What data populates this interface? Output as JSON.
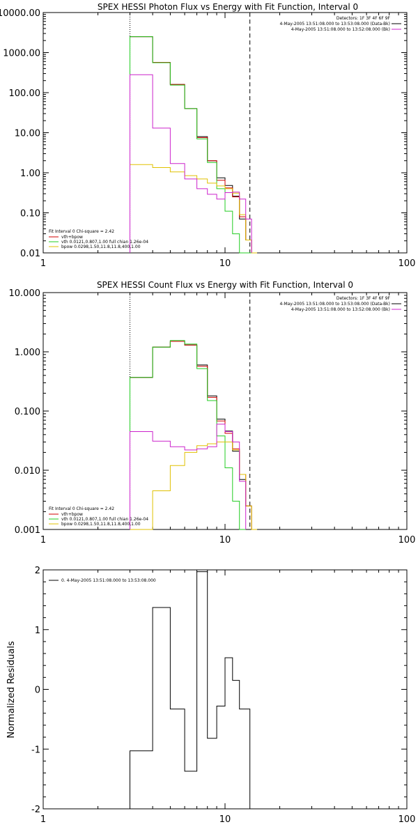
{
  "colors": {
    "background": "#ffffff",
    "axes": "#000000",
    "data": "#000000",
    "fit_total": "#d00000",
    "vth": "#22cc22",
    "bpow": "#e0c000",
    "background_series": "#cc22cc"
  },
  "chart_data": [
    {
      "type": "line",
      "title": "SPEX HESSI Photon Flux vs Energy with Fit Function, Interval 0",
      "xlabel": "",
      "ylabel": "",
      "xscale": "log",
      "yscale": "log",
      "xlim": [
        1,
        100
      ],
      "ylim": [
        0.01,
        10000
      ],
      "x_ticks": [
        "1",
        "10",
        "100"
      ],
      "y_ticks": [
        "0.01",
        "0.10",
        "1.00",
        "10.00",
        "100.00",
        "1000.00",
        "10000.00"
      ],
      "top_right_text": [
        "Detectors: 1F 3F 4F 6F 9F",
        "4-May-2005 13:51:08.000 to 13:53:08.000 (Data-Bk)",
        "4-May-2005 13:51:08.000 to 13:52:08.000 (Bk)"
      ],
      "fit_text": [
        "Fit Interval 0   Chi-square = 2.42",
        "vth+bpow",
        "vth 0.0121,0.807,1.00  full chian 1.26e-04",
        "bpow 0.0298,1.50,11.8,11.8,400,1.00"
      ],
      "vlines": [
        {
          "x": 3.0,
          "style": "dotted"
        },
        {
          "x": 13.7,
          "style": "dashed"
        }
      ],
      "bin_edges": [
        3,
        4,
        5,
        6,
        7,
        8,
        9,
        10,
        11,
        12,
        13,
        14,
        15
      ],
      "series": [
        {
          "name": "4-May-2005 13:51:08.000 to 13:53:08.000 (Data-Bk)",
          "color": "#000000",
          "values": [
            2500,
            560,
            160,
            40,
            8.0,
            2.0,
            0.75,
            0.48,
            0.26,
            0.07,
            0.021,
            null
          ]
        },
        {
          "name": "vth+bpow",
          "color": "#d00000",
          "values": [
            2500,
            570,
            160,
            40,
            7.6,
            2.0,
            0.65,
            0.42,
            0.25,
            0.08,
            0.021,
            null
          ]
        },
        {
          "name": "vth 0.0121,0.807,1.00  full chian 1.26e-04",
          "color": "#22cc22",
          "values": [
            2500,
            560,
            155,
            40,
            7.0,
            1.8,
            0.4,
            0.11,
            0.03,
            0.009,
            0.002,
            null
          ]
        },
        {
          "name": "bpow 0.0298,1.50,11.8,11.8,400,1.00",
          "color": "#e0c000",
          "values": [
            1.6,
            1.35,
            1.05,
            0.85,
            0.7,
            0.55,
            0.47,
            0.4,
            0.31,
            0.09,
            0.021,
            0.004
          ]
        },
        {
          "name": "4-May-2005 13:51:08.000 to 13:52:08.000 (Bk)",
          "color": "#cc22cc",
          "values": [
            280,
            13.0,
            1.7,
            0.7,
            0.4,
            0.29,
            0.22,
            0.32,
            0.33,
            0.22,
            0.07,
            null
          ]
        }
      ]
    },
    {
      "type": "line",
      "title": "SPEX HESSI Count Flux vs Energy with Fit Function, Interval 0",
      "xlabel": "",
      "ylabel": "",
      "xscale": "log",
      "yscale": "log",
      "xlim": [
        1,
        100
      ],
      "ylim": [
        0.001,
        10
      ],
      "x_ticks": [
        "1",
        "10",
        "100"
      ],
      "y_ticks": [
        "0.001",
        "0.010",
        "0.100",
        "1.000",
        "10.000"
      ],
      "top_right_text": [
        "Detectors: 1F 3F 4F 6F 9F",
        "4-May-2005 13:51:08.000 to 13:53:08.000 (Data-Bk)",
        "4-May-2005 13:51:08.000 to 13:52:08.000 (Bk)"
      ],
      "fit_text": [
        "Fit Interval 0   Chi-square = 2.42",
        "vth+bpow",
        "vth 0.0121,0.807,1.00  full chian 1.26e-04",
        "bpow 0.0298,1.50,11.8,11.8,400,1.00"
      ],
      "vlines": [
        {
          "x": 3.0,
          "style": "dotted"
        },
        {
          "x": 13.7,
          "style": "dashed"
        }
      ],
      "bin_edges": [
        3,
        4,
        5,
        6,
        7,
        8,
        9,
        10,
        11,
        12,
        13,
        14,
        15
      ],
      "series": [
        {
          "name": "4-May-2005 13:51:08.000 to 13:53:08.000 (Data-Bk)",
          "color": "#000000",
          "values": [
            0.37,
            1.2,
            1.5,
            1.3,
            0.6,
            0.18,
            0.073,
            0.046,
            0.021,
            0.007,
            0.0025,
            null
          ]
        },
        {
          "name": "vth+bpow",
          "color": "#d00000",
          "values": [
            0.37,
            1.2,
            1.5,
            1.3,
            0.57,
            0.17,
            0.068,
            0.042,
            0.023,
            0.0085,
            0.0025,
            null
          ]
        },
        {
          "name": "vth 0.0121,0.807,1.00  full chian 1.26e-04",
          "color": "#22cc22",
          "values": [
            0.37,
            1.2,
            1.55,
            1.35,
            0.52,
            0.15,
            0.038,
            0.011,
            0.003,
            0.0008,
            null,
            null
          ]
        },
        {
          "name": "bpow 0.0298,1.50,11.8,11.8,400,1.00",
          "color": "#e0c000",
          "values": [
            0.0006,
            0.0045,
            0.012,
            0.02,
            0.026,
            0.028,
            0.03,
            0.03,
            0.022,
            0.0085,
            0.0025,
            0.0009
          ]
        },
        {
          "name": "4-May-2005 13:51:08.000 to 13:52:08.000 (Bk)",
          "color": "#cc22cc",
          "values": [
            0.045,
            0.031,
            0.025,
            0.022,
            0.023,
            0.025,
            0.06,
            0.045,
            0.03,
            0.0065,
            null,
            null
          ]
        }
      ]
    },
    {
      "type": "line",
      "title": "",
      "xlabel": "",
      "ylabel": "Normalized Residuals",
      "xscale": "log",
      "yscale": "linear",
      "xlim": [
        1,
        100
      ],
      "ylim": [
        -2,
        2
      ],
      "x_ticks": [
        "1",
        "10",
        "100"
      ],
      "y_ticks": [
        "-2",
        "-1",
        "0",
        "1",
        "2"
      ],
      "legend": "0. 4-May-2005 13:51:08.000 to 13:53:08.000",
      "bin_edges": [
        3,
        4,
        5,
        6,
        7,
        7.5,
        8,
        9,
        10,
        11,
        12,
        13,
        13.7
      ],
      "series": [
        {
          "name": "0. 4-May-2005 13:51:08.000 to 13:53:08.000",
          "color": "#000000",
          "values": [
            -1.03,
            1.37,
            -0.33,
            -1.37,
            1.97,
            1.97,
            -0.82,
            -0.28,
            0.53,
            0.15,
            -0.33,
            -0.33
          ]
        }
      ]
    }
  ]
}
